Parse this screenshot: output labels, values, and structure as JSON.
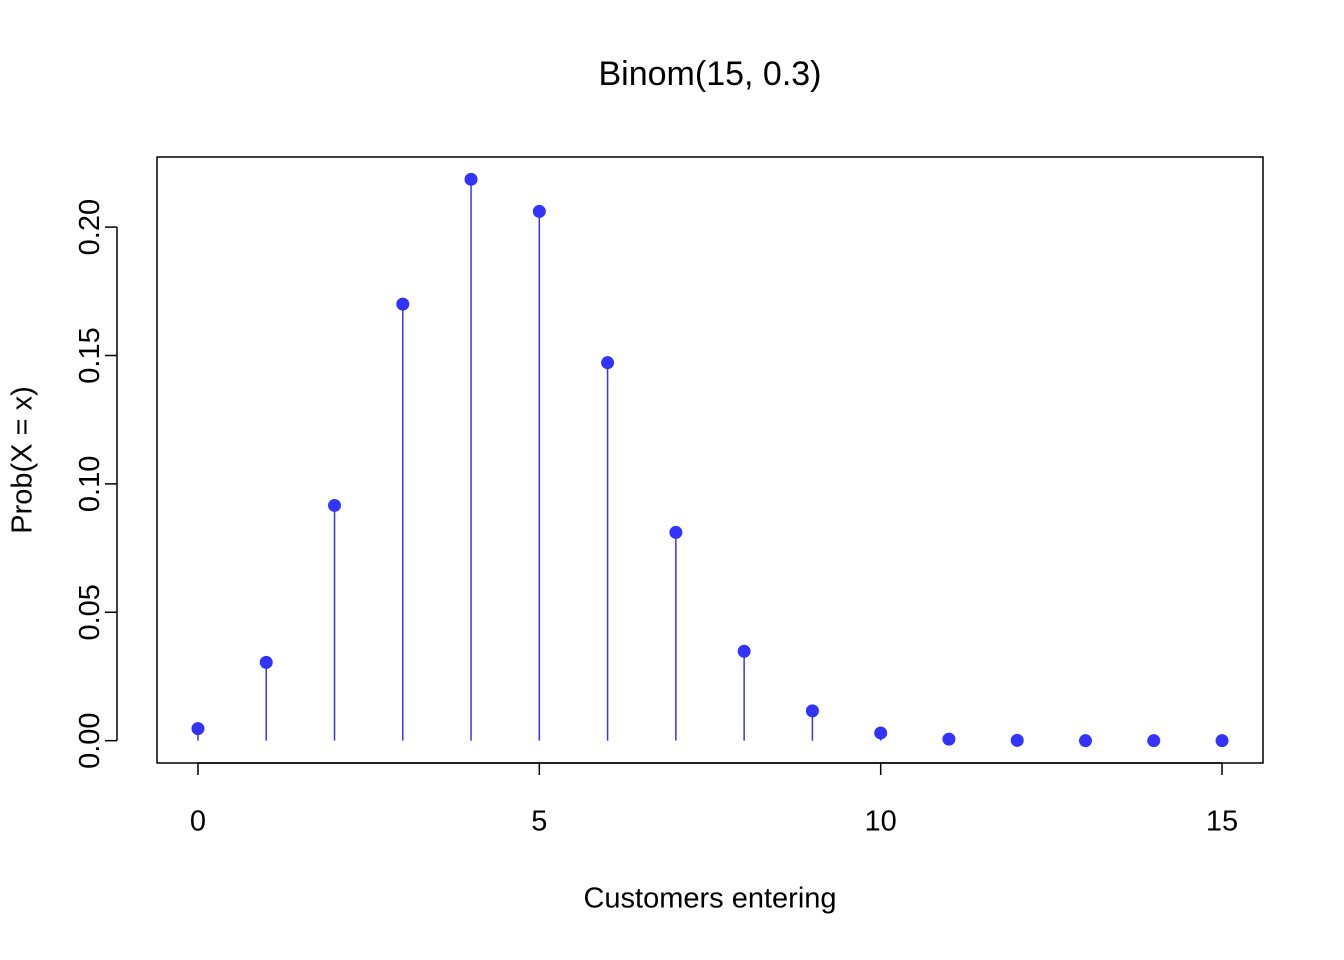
{
  "chart_data": {
    "type": "stem",
    "title": "Binom(15, 0.3)",
    "x_label": "Customers entering",
    "y_label": "Prob(X = x)",
    "x": [
      0,
      1,
      2,
      3,
      4,
      5,
      6,
      7,
      8,
      9,
      10,
      11,
      12,
      13,
      14,
      15
    ],
    "values": [
      0.0047,
      0.0305,
      0.0916,
      0.17,
      0.2186,
      0.2061,
      0.1472,
      0.0811,
      0.0348,
      0.0116,
      0.003,
      0.0006,
      0.0001,
      0,
      0,
      0
    ],
    "color": "#3333ff",
    "xlim": [
      -0.6,
      15.6
    ],
    "xticks": [
      0,
      5,
      10,
      15
    ],
    "ylim": [
      -0.0087,
      0.2273
    ],
    "yticks": [
      {
        "value": 0,
        "label": "0.00"
      },
      {
        "value": 0.05,
        "label": "0.05"
      },
      {
        "value": 0.1,
        "label": "0.10"
      },
      {
        "value": 0.15,
        "label": "0.15"
      },
      {
        "value": 0.2,
        "label": "0.20"
      }
    ]
  }
}
